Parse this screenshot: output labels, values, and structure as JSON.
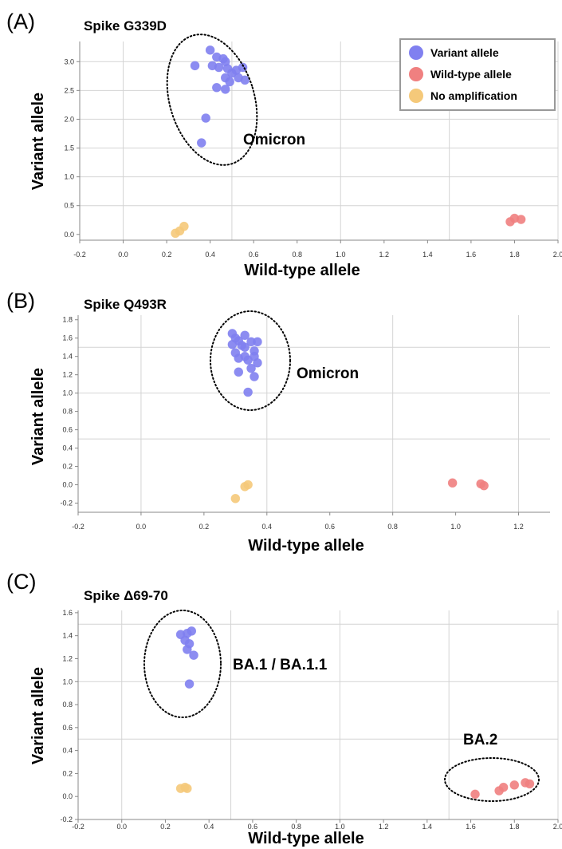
{
  "colors": {
    "variant": "#8080f0",
    "wildtype": "#f08080",
    "noamp": "#f5c97a",
    "legend_border": "#999999"
  },
  "legend": {
    "items": [
      {
        "label": "Variant allele",
        "color": "#8080f0"
      },
      {
        "label": "Wild-type allele",
        "color": "#f08080"
      },
      {
        "label": "No amplification",
        "color": "#f5c97a"
      }
    ],
    "placement": "top-right of panel A"
  },
  "chart_data": [
    {
      "panel": "(A)",
      "type": "scatter",
      "title": "Spike G339D",
      "xlabel": "Wild-type allele",
      "ylabel": "Variant allele",
      "xlim": [
        -0.2,
        2.0
      ],
      "ylim": [
        -0.1,
        3.35
      ],
      "xticks": [
        "-0.2",
        "0.0",
        "0.2",
        "0.4",
        "0.6",
        "0.8",
        "1.0",
        "1.2",
        "1.4",
        "1.6",
        "1.8",
        "2.0"
      ],
      "yticks": [
        "0.0",
        "0.5",
        "1.0",
        "1.5",
        "2.0",
        "2.5",
        "3.0"
      ],
      "grid": true,
      "annotations": [
        {
          "text": "Omicron"
        }
      ],
      "series": [
        {
          "name": "Variant allele",
          "color": "#8080f0",
          "points": [
            [
              0.33,
              2.93
            ],
            [
              0.4,
              3.2
            ],
            [
              0.43,
              3.08
            ],
            [
              0.46,
              3.05
            ],
            [
              0.47,
              3.0
            ],
            [
              0.41,
              2.93
            ],
            [
              0.44,
              2.9
            ],
            [
              0.48,
              2.88
            ],
            [
              0.52,
              2.85
            ],
            [
              0.55,
              2.9
            ],
            [
              0.5,
              2.8
            ],
            [
              0.47,
              2.72
            ],
            [
              0.53,
              2.72
            ],
            [
              0.56,
              2.68
            ],
            [
              0.49,
              2.65
            ],
            [
              0.43,
              2.55
            ],
            [
              0.47,
              2.52
            ],
            [
              0.38,
              2.02
            ],
            [
              0.36,
              1.59
            ]
          ]
        },
        {
          "name": "Wild-type allele",
          "color": "#f08080",
          "points": [
            [
              1.78,
              0.22
            ],
            [
              1.8,
              0.28
            ],
            [
              1.83,
              0.26
            ]
          ]
        },
        {
          "name": "No amplification",
          "color": "#f5c97a",
          "points": [
            [
              0.24,
              0.02
            ],
            [
              0.26,
              0.06
            ],
            [
              0.28,
              0.14
            ]
          ]
        }
      ]
    },
    {
      "panel": "(B)",
      "type": "scatter",
      "title": "Spike Q493R",
      "xlabel": "Wild-type allele",
      "ylabel": "Variant allele",
      "xlim": [
        -0.2,
        1.3
      ],
      "ylim": [
        -0.3,
        1.85
      ],
      "xticks": [
        "-0.2",
        "0.0",
        "0.2",
        "0.4",
        "0.6",
        "0.8",
        "1.0",
        "1.2"
      ],
      "yticks": [
        "-0.2",
        "0.0",
        "0.2",
        "0.4",
        "0.6",
        "0.8",
        "1.0",
        "1.2",
        "1.4",
        "1.6",
        "1.8"
      ],
      "grid": true,
      "annotations": [
        {
          "text": "Omicron"
        }
      ],
      "series": [
        {
          "name": "Variant allele",
          "color": "#8080f0",
          "points": [
            [
              0.29,
              1.65
            ],
            [
              0.33,
              1.63
            ],
            [
              0.3,
              1.6
            ],
            [
              0.31,
              1.57
            ],
            [
              0.35,
              1.56
            ],
            [
              0.37,
              1.56
            ],
            [
              0.29,
              1.53
            ],
            [
              0.32,
              1.52
            ],
            [
              0.33,
              1.5
            ],
            [
              0.36,
              1.46
            ],
            [
              0.3,
              1.44
            ],
            [
              0.33,
              1.4
            ],
            [
              0.36,
              1.4
            ],
            [
              0.31,
              1.38
            ],
            [
              0.34,
              1.36
            ],
            [
              0.37,
              1.33
            ],
            [
              0.35,
              1.27
            ],
            [
              0.31,
              1.23
            ],
            [
              0.36,
              1.18
            ],
            [
              0.34,
              1.01
            ]
          ]
        },
        {
          "name": "Wild-type allele",
          "color": "#f08080",
          "points": [
            [
              0.99,
              0.02
            ],
            [
              1.08,
              0.01
            ],
            [
              1.09,
              -0.01
            ]
          ]
        },
        {
          "name": "No amplification",
          "color": "#f5c97a",
          "points": [
            [
              0.3,
              -0.15
            ],
            [
              0.33,
              -0.02
            ],
            [
              0.34,
              0.0
            ]
          ]
        }
      ]
    },
    {
      "panel": "(C)",
      "type": "scatter",
      "title": "Spike Δ69-70",
      "xlabel": "Wild-type allele",
      "ylabel": "Variant allele",
      "xlim": [
        -0.2,
        2.0
      ],
      "ylim": [
        -0.2,
        1.62
      ],
      "xticks": [
        "-0.2",
        "0.0",
        "0.2",
        "0.4",
        "0.6",
        "0.8",
        "1.0",
        "1.2",
        "1.4",
        "1.6",
        "1.8",
        "2.0"
      ],
      "yticks": [
        "-0.2",
        "0.0",
        "0.2",
        "0.4",
        "0.6",
        "0.8",
        "1.0",
        "1.2",
        "1.4",
        "1.6"
      ],
      "grid": true,
      "annotations": [
        {
          "text": "BA.1 / BA.1.1"
        },
        {
          "text": "BA.2"
        }
      ],
      "series": [
        {
          "name": "Variant allele",
          "color": "#8080f0",
          "points": [
            [
              0.27,
              1.41
            ],
            [
              0.3,
              1.42
            ],
            [
              0.32,
              1.44
            ],
            [
              0.29,
              1.36
            ],
            [
              0.31,
              1.33
            ],
            [
              0.3,
              1.28
            ],
            [
              0.33,
              1.23
            ],
            [
              0.31,
              0.98
            ]
          ]
        },
        {
          "name": "Wild-type allele",
          "color": "#f08080",
          "points": [
            [
              1.62,
              0.02
            ],
            [
              1.73,
              0.05
            ],
            [
              1.75,
              0.08
            ],
            [
              1.8,
              0.1
            ],
            [
              1.85,
              0.12
            ],
            [
              1.87,
              0.11
            ]
          ]
        },
        {
          "name": "No amplification",
          "color": "#f5c97a",
          "points": [
            [
              0.27,
              0.07
            ],
            [
              0.29,
              0.08
            ],
            [
              0.3,
              0.07
            ]
          ]
        }
      ]
    }
  ]
}
